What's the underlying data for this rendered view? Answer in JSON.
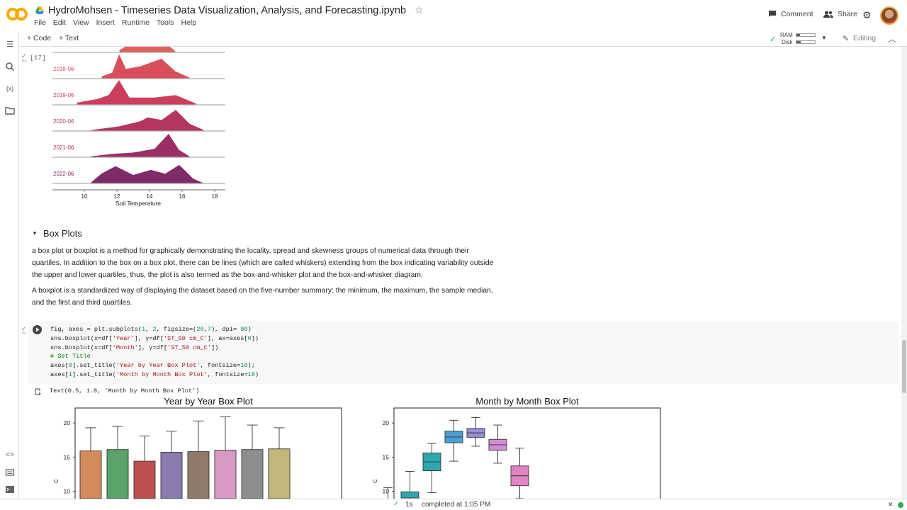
{
  "app": {
    "title": "HydroMohsen - Timeseries Data Visualization, Analysis, and Forecasting.ipynb",
    "menu": [
      "File",
      "Edit",
      "View",
      "Insert",
      "Runtime",
      "Tools",
      "Help"
    ],
    "comment_label": "Comment",
    "share_label": "Share"
  },
  "toolbar": {
    "code_label": "+ Code",
    "text_label": "+ Text",
    "ram_label": "RAM",
    "disk_label": "Disk",
    "editing_label": "Editing"
  },
  "colors": {
    "accent": "#f9ab00",
    "link": "#1a73e8",
    "ok": "#34a853"
  },
  "ridge": {
    "exec_count": "[17]",
    "rows": [
      {
        "label": "2017-06",
        "color": "#e0605a"
      },
      {
        "label": "2018-06",
        "color": "#d84f5b"
      },
      {
        "label": "2019-06",
        "color": "#c93f5c"
      },
      {
        "label": "2020-06",
        "color": "#b3365f"
      },
      {
        "label": "2021-06",
        "color": "#9b2f63"
      },
      {
        "label": "2022-06",
        "color": "#7e2b67"
      }
    ],
    "xticks": [
      "10",
      "12",
      "14",
      "16",
      "18"
    ],
    "xlabel": "Soil Temperature"
  },
  "section": {
    "title": "Box Plots",
    "para1_l1": "a box plot or boxplot is a method for graphically demonstrating the locality, spread and skewness groups of numerical data through their",
    "para1_l2": "quartiles. In addition to the box on a box plot, there can be lines (which are called whiskers) extending from the box indicating variability outside",
    "para1_l3": "the upper and lower quartiles, thus, the plot is also termed as the box-and-whisker plot and the box-and-whisker diagram.",
    "para2_l1": "A boxplot is a standardized way of displaying the dataset based on the five-number summary: the minimum, the maximum, the sample median,",
    "para2_l2": "and the first and third quartiles."
  },
  "code": {
    "l1a": "fig, axes = plt.subplots(",
    "l1n1": "1",
    "l1s1": ", ",
    "l1n2": "2",
    "l1b": ", figsize=(",
    "l1n3": "20",
    "l1c": ",",
    "l1n4": "7",
    "l1d": "), dpi= ",
    "l1n5": "80",
    "l1e": ")",
    "l2a": "sns.boxplot(x=df[",
    "l2s1": "'Year'",
    "l2b": "], y=df[",
    "l2s2": "'ST_50 cm_C'",
    "l2c": "], ax=axes[",
    "l2n": "0",
    "l2d": "])",
    "l3a": "sns.boxplot(x=df[",
    "l3s1": "'Month'",
    "l3b": "], y=df[",
    "l3s2": "'ST_50 cm_C'",
    "l3c": "])",
    "l4": "# Set Title",
    "l5a": "axes[",
    "l5n": "0",
    "l5b": "].set_title(",
    "l5s": "'Year by Year Box Plot'",
    "l5c": ", fontsize=",
    "l5n2": "18",
    "l5d": ");",
    "l6a": "axes[",
    "l6n": "1",
    "l6b": "].set_title(",
    "l6s": "'Month by Month Box Plot'",
    "l6c": ", fontsize=",
    "l6n2": "18",
    "l6d": ")"
  },
  "output_text": "Text(0.5, 1.0, 'Month by Month Box Plot')",
  "chart_data": [
    {
      "type": "bar",
      "title": "Year by Year Box Plot",
      "ylabel": "C",
      "yticks": [
        "20",
        "15",
        "10"
      ],
      "ylim": [
        8.9,
        22.2
      ],
      "boxes": [
        {
          "q1": 8.9,
          "q3": 15.9,
          "whisker_low": 8.9,
          "whisker_high": 19.3,
          "color": "#d48a5b"
        },
        {
          "q1": 8.9,
          "q3": 16.1,
          "whisker_low": 8.9,
          "whisker_high": 19.5,
          "color": "#5aa36b"
        },
        {
          "q1": 8.9,
          "q3": 14.4,
          "whisker_low": 8.9,
          "whisker_high": 18.1,
          "color": "#c0504d"
        },
        {
          "q1": 8.9,
          "q3": 15.7,
          "whisker_low": 8.9,
          "whisker_high": 18.8,
          "color": "#8a7ab0"
        },
        {
          "q1": 8.9,
          "q3": 15.8,
          "whisker_low": 8.9,
          "whisker_high": 20.3,
          "color": "#917a68"
        },
        {
          "q1": 8.9,
          "q3": 16.0,
          "whisker_low": 8.9,
          "whisker_high": 20.9,
          "color": "#d89ac4"
        },
        {
          "q1": 8.9,
          "q3": 16.1,
          "whisker_low": 8.9,
          "whisker_high": 19.7,
          "color": "#8e8e8e"
        },
        {
          "q1": 8.9,
          "q3": 16.2,
          "whisker_low": 8.9,
          "whisker_high": 19.3,
          "color": "#c2b77a"
        }
      ]
    },
    {
      "type": "bar",
      "title": "Month by Month Box Plot",
      "ylabel": "C",
      "yticks": [
        "20",
        "15",
        "10"
      ],
      "ylim": [
        8.9,
        22.2
      ],
      "boxes": [
        {
          "q1": null,
          "q3": null,
          "whisker_low": 8.9,
          "whisker_high": 10.5,
          "color": "#3d8fbf"
        },
        {
          "q1": 9.0,
          "q3": 9.9,
          "whisker_low": 8.9,
          "whisker_high": 12.9,
          "color": "#2ea7b0"
        },
        {
          "q1": 13.0,
          "q3": 15.6,
          "whisker_low": 9.8,
          "whisker_high": 17.0,
          "color": "#2ea7b0"
        },
        {
          "q1": 17.1,
          "q3": 18.8,
          "whisker_low": 14.4,
          "whisker_high": 20.4,
          "color": "#4a9fd4"
        },
        {
          "q1": 17.9,
          "q3": 19.2,
          "whisker_low": 16.6,
          "whisker_high": 20.8,
          "color": "#9b8fd8"
        },
        {
          "q1": 16.0,
          "q3": 17.6,
          "whisker_low": 14.1,
          "whisker_high": 19.7,
          "color": "#d58ad6"
        },
        {
          "q1": 10.8,
          "q3": 13.7,
          "whisker_low": 8.9,
          "whisker_high": 16.3,
          "color": "#e085c2"
        }
      ]
    }
  ],
  "status": {
    "duration": "1s",
    "completed": "completed at 1:05 PM"
  }
}
